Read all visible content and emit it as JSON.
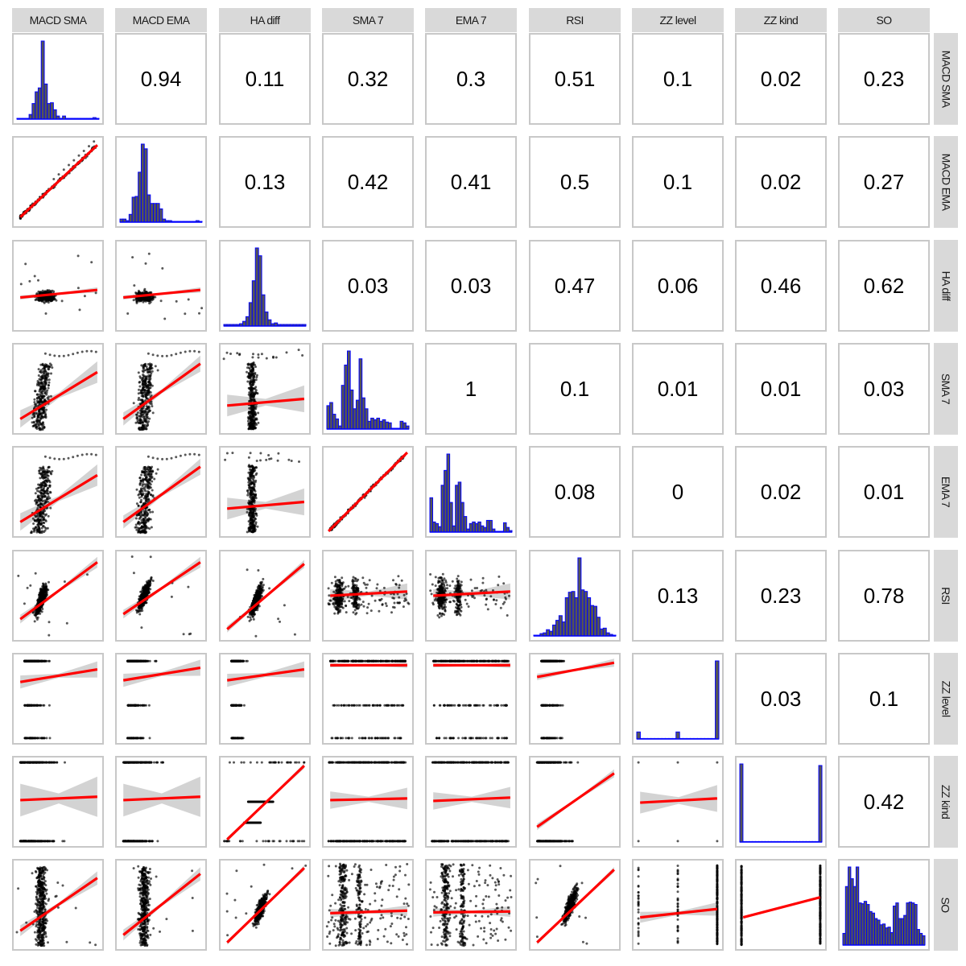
{
  "variables": [
    "MACD SMA",
    "MACD EMA",
    "HA diff",
    "SMA 7",
    "EMA 7",
    "RSI",
    "ZZ level",
    "ZZ kind",
    "SO"
  ],
  "colors": {
    "histogram_fill": "#555555",
    "histogram_outline": "#0000ff",
    "fit_line": "#ff0000",
    "confidence_band": "#d3d3d3",
    "points": "#000000",
    "strip_background": "#d9d9d9",
    "panel_border": "#c8c8c8"
  },
  "chart_data": {
    "type": "scatter",
    "title": "",
    "layout": "pairs plot (scatterplot matrix): lower triangle = scatter with linear fit + 95% CI, diagonal = histograms, upper triangle = correlation coefficients",
    "xlabel": "",
    "ylabel": "",
    "grid": false,
    "legend": "none",
    "column_labels": [
      "MACD SMA",
      "MACD EMA",
      "HA diff",
      "SMA 7",
      "EMA 7",
      "RSI",
      "ZZ level",
      "ZZ kind",
      "SO"
    ],
    "row_labels": [
      "MACD SMA",
      "MACD EMA",
      "HA diff",
      "SMA 7",
      "EMA 7",
      "RSI",
      "ZZ level",
      "ZZ kind",
      "SO"
    ],
    "correlations": [
      {
        "row": "MACD SMA",
        "col": "MACD EMA",
        "value": "0.94"
      },
      {
        "row": "MACD SMA",
        "col": "HA diff",
        "value": "0.11"
      },
      {
        "row": "MACD SMA",
        "col": "SMA 7",
        "value": "0.32"
      },
      {
        "row": "MACD SMA",
        "col": "EMA 7",
        "value": "0.3"
      },
      {
        "row": "MACD SMA",
        "col": "RSI",
        "value": "0.51"
      },
      {
        "row": "MACD SMA",
        "col": "ZZ level",
        "value": "0.1"
      },
      {
        "row": "MACD SMA",
        "col": "ZZ kind",
        "value": "0.02"
      },
      {
        "row": "MACD SMA",
        "col": "SO",
        "value": "0.23"
      },
      {
        "row": "MACD EMA",
        "col": "HA diff",
        "value": "0.13"
      },
      {
        "row": "MACD EMA",
        "col": "SMA 7",
        "value": "0.42"
      },
      {
        "row": "MACD EMA",
        "col": "EMA 7",
        "value": "0.41"
      },
      {
        "row": "MACD EMA",
        "col": "RSI",
        "value": "0.5"
      },
      {
        "row": "MACD EMA",
        "col": "ZZ level",
        "value": "0.1"
      },
      {
        "row": "MACD EMA",
        "col": "ZZ kind",
        "value": "0.02"
      },
      {
        "row": "MACD EMA",
        "col": "SO",
        "value": "0.27"
      },
      {
        "row": "HA diff",
        "col": "SMA 7",
        "value": "0.03"
      },
      {
        "row": "HA diff",
        "col": "EMA 7",
        "value": "0.03"
      },
      {
        "row": "HA diff",
        "col": "RSI",
        "value": "0.47"
      },
      {
        "row": "HA diff",
        "col": "ZZ level",
        "value": "0.06"
      },
      {
        "row": "HA diff",
        "col": "ZZ kind",
        "value": "0.46"
      },
      {
        "row": "HA diff",
        "col": "SO",
        "value": "0.62"
      },
      {
        "row": "SMA 7",
        "col": "EMA 7",
        "value": "1"
      },
      {
        "row": "SMA 7",
        "col": "RSI",
        "value": "0.1"
      },
      {
        "row": "SMA 7",
        "col": "ZZ level",
        "value": "0.01"
      },
      {
        "row": "SMA 7",
        "col": "ZZ kind",
        "value": "0.01"
      },
      {
        "row": "SMA 7",
        "col": "SO",
        "value": "0.03"
      },
      {
        "row": "EMA 7",
        "col": "RSI",
        "value": "0.08"
      },
      {
        "row": "EMA 7",
        "col": "ZZ level",
        "value": "0"
      },
      {
        "row": "EMA 7",
        "col": "ZZ kind",
        "value": "0.02"
      },
      {
        "row": "EMA 7",
        "col": "SO",
        "value": "0.01"
      },
      {
        "row": "RSI",
        "col": "ZZ level",
        "value": "0.13"
      },
      {
        "row": "RSI",
        "col": "ZZ kind",
        "value": "0.23"
      },
      {
        "row": "RSI",
        "col": "SO",
        "value": "0.78"
      },
      {
        "row": "ZZ level",
        "col": "ZZ kind",
        "value": "0.03"
      },
      {
        "row": "ZZ level",
        "col": "SO",
        "value": "0.1"
      },
      {
        "row": "ZZ kind",
        "col": "SO",
        "value": "0.42"
      }
    ],
    "upper_matrix": [
      [
        "",
        "0.94",
        "0.11",
        "0.32",
        "0.3",
        "0.51",
        "0.1",
        "0.02",
        "0.23"
      ],
      [
        "",
        "",
        "0.13",
        "0.42",
        "0.41",
        "0.5",
        "0.1",
        "0.02",
        "0.27"
      ],
      [
        "",
        "",
        "",
        "0.03",
        "0.03",
        "0.47",
        "0.06",
        "0.46",
        "0.62"
      ],
      [
        "",
        "",
        "",
        "",
        "1",
        "0.1",
        "0.01",
        "0.01",
        "0.03"
      ],
      [
        "",
        "",
        "",
        "",
        "",
        "0.08",
        "0",
        "0.02",
        "0.01"
      ],
      [
        "",
        "",
        "",
        "",
        "",
        "",
        "0.13",
        "0.23",
        "0.78"
      ],
      [
        "",
        "",
        "",
        "",
        "",
        "",
        "",
        "0.03",
        "0.1"
      ],
      [
        "",
        "",
        "",
        "",
        "",
        "",
        "",
        "",
        "0.42"
      ],
      [
        "",
        "",
        "",
        "",
        "",
        "",
        "",
        "",
        ""
      ]
    ],
    "histograms": {
      "MACD SMA": [
        1,
        1,
        1,
        1,
        6,
        20,
        35,
        40,
        100,
        45,
        20,
        21,
        12,
        4,
        1,
        4,
        1,
        1,
        1,
        1,
        1,
        1,
        1,
        1,
        1,
        2,
        1
      ],
      "MACD EMA": [
        4,
        4,
        2,
        10,
        32,
        33,
        64,
        100,
        94,
        35,
        24,
        24,
        24,
        17,
        4,
        2,
        2,
        1,
        1,
        1,
        1,
        1,
        1,
        1,
        1,
        2,
        1
      ],
      "HA diff": [
        2,
        2,
        2,
        2,
        2,
        3,
        6,
        12,
        30,
        58,
        100,
        90,
        40,
        18,
        8,
        3,
        4,
        2,
        2,
        2,
        2,
        2,
        2,
        2,
        2,
        2
      ],
      "SMA 7": [
        30,
        34,
        19,
        13,
        4,
        56,
        82,
        100,
        50,
        26,
        37,
        90,
        40,
        26,
        10,
        14,
        12,
        14,
        10,
        12,
        9,
        8,
        1,
        1,
        1,
        10,
        8,
        4
      ],
      "EMA 7": [
        44,
        13,
        11,
        7,
        60,
        79,
        100,
        38,
        8,
        60,
        64,
        38,
        20,
        4,
        11,
        13,
        11,
        13,
        8,
        6,
        15,
        15,
        4,
        1,
        1,
        1,
        12,
        6,
        2
      ],
      "RSI": [
        1,
        1,
        3,
        4,
        8,
        6,
        14,
        20,
        26,
        18,
        49,
        56,
        57,
        49,
        100,
        59,
        57,
        49,
        39,
        38,
        24,
        9,
        10,
        4,
        2,
        1
      ],
      "ZZ level": [
        9,
        0,
        0,
        0,
        0,
        0,
        0,
        0,
        0,
        0,
        0,
        9,
        0,
        0,
        0,
        0,
        0,
        0,
        0,
        0,
        0,
        0,
        100
      ],
      "ZZ kind": [
        100,
        0,
        0,
        0,
        0,
        0,
        0,
        0,
        0,
        0,
        0,
        0,
        0,
        0,
        0,
        0,
        0,
        0,
        0,
        0,
        0,
        0,
        0,
        0,
        0,
        98
      ],
      "SO": [
        15,
        75,
        100,
        85,
        75,
        100,
        54,
        53,
        56,
        52,
        43,
        41,
        34,
        32,
        26,
        27,
        22,
        23,
        16,
        50,
        54,
        34,
        34,
        38,
        54,
        55,
        54,
        52,
        20,
        15,
        12
      ]
    },
    "scatter_panels": [
      {
        "row": "MACD EMA",
        "col": "MACD SMA",
        "kind": "tight",
        "line": [
          [
            0.05,
            0.08
          ],
          [
            0.97,
            0.94
          ]
        ],
        "band": 0.01
      },
      {
        "row": "HA diff",
        "col": "MACD SMA",
        "kind": "cluster",
        "cx": 0.35,
        "cy": 0.37,
        "line": [
          [
            0.05,
            0.36
          ],
          [
            0.97,
            0.45
          ]
        ],
        "band": 0.02
      },
      {
        "row": "HA diff",
        "col": "MACD EMA",
        "kind": "cluster",
        "cx": 0.3,
        "cy": 0.37,
        "line": [
          [
            0.05,
            0.36
          ],
          [
            0.97,
            0.45
          ]
        ],
        "band": 0.02
      },
      {
        "row": "SMA 7",
        "col": "MACD SMA",
        "kind": "blob",
        "cx": 0.3,
        "cy": 0.35,
        "line": [
          [
            0.05,
            0.14
          ],
          [
            0.97,
            0.7
          ]
        ],
        "band": 0.08
      },
      {
        "row": "SMA 7",
        "col": "MACD EMA",
        "kind": "blob",
        "cx": 0.3,
        "cy": 0.35,
        "line": [
          [
            0.05,
            0.14
          ],
          [
            0.97,
            0.8
          ]
        ],
        "band": 0.06
      },
      {
        "row": "SMA 7",
        "col": "HA diff",
        "kind": "vertical",
        "cx": 0.35,
        "cy": 0.3,
        "line": [
          [
            0.05,
            0.3
          ],
          [
            0.97,
            0.38
          ]
        ],
        "band": 0.1
      },
      {
        "row": "EMA 7",
        "col": "MACD SMA",
        "kind": "blob",
        "cx": 0.3,
        "cy": 0.35,
        "line": [
          [
            0.05,
            0.14
          ],
          [
            0.97,
            0.7
          ]
        ],
        "band": 0.08
      },
      {
        "row": "EMA 7",
        "col": "MACD EMA",
        "kind": "blob",
        "cx": 0.3,
        "cy": 0.35,
        "line": [
          [
            0.05,
            0.14
          ],
          [
            0.97,
            0.8
          ]
        ],
        "band": 0.06
      },
      {
        "row": "EMA 7",
        "col": "HA diff",
        "kind": "vertical",
        "cx": 0.35,
        "cy": 0.3,
        "line": [
          [
            0.05,
            0.3
          ],
          [
            0.97,
            0.38
          ]
        ],
        "band": 0.1
      },
      {
        "row": "EMA 7",
        "col": "SMA 7",
        "kind": "tight",
        "line": [
          [
            0.03,
            0.03
          ],
          [
            0.97,
            0.97
          ]
        ],
        "band": 0.01
      },
      {
        "row": "RSI",
        "col": "MACD SMA",
        "kind": "ellipse",
        "cx": 0.3,
        "cy": 0.45,
        "line": [
          [
            0.05,
            0.22
          ],
          [
            0.97,
            0.9
          ]
        ],
        "band": 0.04
      },
      {
        "row": "RSI",
        "col": "MACD EMA",
        "kind": "ellipse",
        "cx": 0.3,
        "cy": 0.5,
        "line": [
          [
            0.05,
            0.28
          ],
          [
            0.97,
            0.9
          ]
        ],
        "band": 0.04
      },
      {
        "row": "RSI",
        "col": "HA diff",
        "kind": "ellipse",
        "cx": 0.4,
        "cy": 0.45,
        "line": [
          [
            0.05,
            0.1
          ],
          [
            0.97,
            0.88
          ]
        ],
        "band": 0.03
      },
      {
        "row": "RSI",
        "col": "SMA 7",
        "kind": "bands",
        "cx": 0.3,
        "cy": 0.5,
        "line": [
          [
            0.05,
            0.5
          ],
          [
            0.97,
            0.55
          ]
        ],
        "band": 0.06
      },
      {
        "row": "RSI",
        "col": "EMA 7",
        "kind": "bands",
        "cx": 0.3,
        "cy": 0.5,
        "line": [
          [
            0.05,
            0.5
          ],
          [
            0.97,
            0.55
          ]
        ],
        "band": 0.06
      },
      {
        "row": "ZZ level",
        "col": "MACD SMA",
        "kind": "levels3",
        "line": [
          [
            0.05,
            0.7
          ],
          [
            0.97,
            0.85
          ]
        ],
        "band": 0.06
      },
      {
        "row": "ZZ level",
        "col": "MACD EMA",
        "kind": "levels3",
        "line": [
          [
            0.05,
            0.72
          ],
          [
            0.97,
            0.87
          ]
        ],
        "band": 0.06
      },
      {
        "row": "ZZ level",
        "col": "HA diff",
        "kind": "levels3c",
        "line": [
          [
            0.05,
            0.72
          ],
          [
            0.97,
            0.85
          ]
        ],
        "band": 0.06
      },
      {
        "row": "ZZ level",
        "col": "SMA 7",
        "kind": "levels3w",
        "line": [
          [
            0.05,
            0.9
          ],
          [
            0.97,
            0.9
          ]
        ],
        "band": 0.02
      },
      {
        "row": "ZZ level",
        "col": "EMA 7",
        "kind": "levels3w",
        "line": [
          [
            0.05,
            0.9
          ],
          [
            0.97,
            0.9
          ]
        ],
        "band": 0.02
      },
      {
        "row": "ZZ level",
        "col": "RSI",
        "kind": "levels3",
        "line": [
          [
            0.05,
            0.76
          ],
          [
            0.97,
            0.93
          ]
        ],
        "band": 0.03
      },
      {
        "row": "ZZ kind",
        "col": "MACD SMA",
        "kind": "levels2",
        "line": [
          [
            0.05,
            0.52
          ],
          [
            0.97,
            0.56
          ]
        ],
        "band": 0.15
      },
      {
        "row": "ZZ kind",
        "col": "MACD EMA",
        "kind": "levels2",
        "line": [
          [
            0.05,
            0.52
          ],
          [
            0.97,
            0.56
          ]
        ],
        "band": 0.15
      },
      {
        "row": "ZZ kind",
        "col": "HA diff",
        "kind": "levels2c",
        "line": [
          [
            0.05,
            0.05
          ],
          [
            0.97,
            0.93
          ]
        ],
        "band": 0.02
      },
      {
        "row": "ZZ kind",
        "col": "SMA 7",
        "kind": "levels2w",
        "line": [
          [
            0.05,
            0.52
          ],
          [
            0.97,
            0.54
          ]
        ],
        "band": 0.08
      },
      {
        "row": "ZZ kind",
        "col": "EMA 7",
        "kind": "levels2w",
        "line": [
          [
            0.05,
            0.51
          ],
          [
            0.97,
            0.55
          ]
        ],
        "band": 0.08
      },
      {
        "row": "ZZ kind",
        "col": "RSI",
        "kind": "levels2",
        "line": [
          [
            0.05,
            0.2
          ],
          [
            0.97,
            0.84
          ]
        ],
        "band": 0.03
      },
      {
        "row": "ZZ kind",
        "col": "ZZ level",
        "kind": "grid3x2",
        "line": [
          [
            0.05,
            0.49
          ],
          [
            0.97,
            0.54
          ]
        ],
        "band": 0.1
      },
      {
        "row": "SO",
        "col": "MACD SMA",
        "kind": "column",
        "cx": 0.3,
        "cy": 0.45,
        "line": [
          [
            0.05,
            0.19
          ],
          [
            0.97,
            0.82
          ]
        ],
        "band": 0.05
      },
      {
        "row": "SO",
        "col": "MACD EMA",
        "kind": "column",
        "cx": 0.3,
        "cy": 0.45,
        "line": [
          [
            0.05,
            0.14
          ],
          [
            0.97,
            0.87
          ]
        ],
        "band": 0.05
      },
      {
        "row": "SO",
        "col": "HA diff",
        "kind": "ellipse",
        "cx": 0.45,
        "cy": 0.45,
        "line": [
          [
            0.05,
            0.05
          ],
          [
            0.97,
            0.94
          ]
        ],
        "band": 0.02
      },
      {
        "row": "SO",
        "col": "SMA 7",
        "kind": "columns",
        "line": [
          [
            0.05,
            0.4
          ],
          [
            0.97,
            0.43
          ]
        ],
        "band": 0.04
      },
      {
        "row": "SO",
        "col": "EMA 7",
        "kind": "columns",
        "line": [
          [
            0.05,
            0.41
          ],
          [
            0.97,
            0.42
          ]
        ],
        "band": 0.04
      },
      {
        "row": "SO",
        "col": "RSI",
        "kind": "ellipse",
        "cx": 0.45,
        "cy": 0.5,
        "line": [
          [
            0.05,
            0.05
          ],
          [
            0.97,
            0.92
          ]
        ],
        "band": 0.02
      },
      {
        "row": "SO",
        "col": "ZZ level",
        "kind": "vcols3",
        "line": [
          [
            0.05,
            0.35
          ],
          [
            0.97,
            0.45
          ]
        ],
        "band": 0.05
      },
      {
        "row": "SO",
        "col": "ZZ kind",
        "kind": "vcols2",
        "line": [
          [
            0.05,
            0.35
          ],
          [
            0.97,
            0.59
          ]
        ],
        "band": 0.01
      }
    ]
  }
}
